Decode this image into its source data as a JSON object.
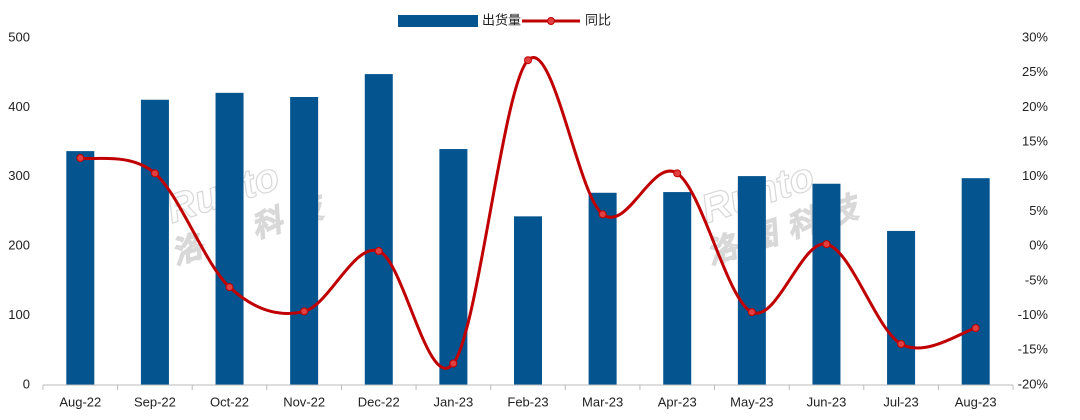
{
  "chart_data": {
    "type": "bar-line",
    "watermark": [
      "Runto",
      "洛图科技"
    ],
    "categories": [
      "Aug-22",
      "Sep-22",
      "Oct-22",
      "Nov-22",
      "Dec-22",
      "Jan-23",
      "Feb-23",
      "Mar-23",
      "Apr-23",
      "May-23",
      "Jun-23",
      "Jul-23",
      "Aug-23"
    ],
    "series": [
      {
        "name": "出货量",
        "color": "#04548f",
        "type": "bar",
        "values": [
          337,
          411,
          421,
          415,
          448,
          340,
          243,
          277,
          278,
          301,
          290,
          222,
          298
        ]
      },
      {
        "name": "同比",
        "color": "#c00000",
        "type": "line",
        "axis": "y2",
        "values": [
          12.7,
          10.5,
          -5.9,
          -9.4,
          -0.7,
          -16.9,
          26.8,
          4.6,
          10.5,
          -9.5,
          0.3,
          -14.1,
          -11.8
        ]
      }
    ],
    "ylim": [
      0,
      500
    ],
    "yticks": [
      0,
      100,
      200,
      300,
      400,
      500
    ],
    "y2lim": [
      -20,
      30
    ],
    "y2ticks": [
      {
        "value": -20,
        "label": "-20%"
      },
      {
        "value": -15,
        "label": "-15%"
      },
      {
        "value": -10,
        "label": "-10%"
      },
      {
        "value": -5,
        "label": "-5%"
      },
      {
        "value": 0,
        "label": "0%"
      },
      {
        "value": 5,
        "label": "5%"
      },
      {
        "value": 10,
        "label": "10%"
      },
      {
        "value": 15,
        "label": "15%"
      },
      {
        "value": 20,
        "label": "20%"
      },
      {
        "value": 25,
        "label": "25%"
      },
      {
        "value": 30,
        "label": "30%"
      }
    ],
    "legend": "top",
    "grid": false
  }
}
